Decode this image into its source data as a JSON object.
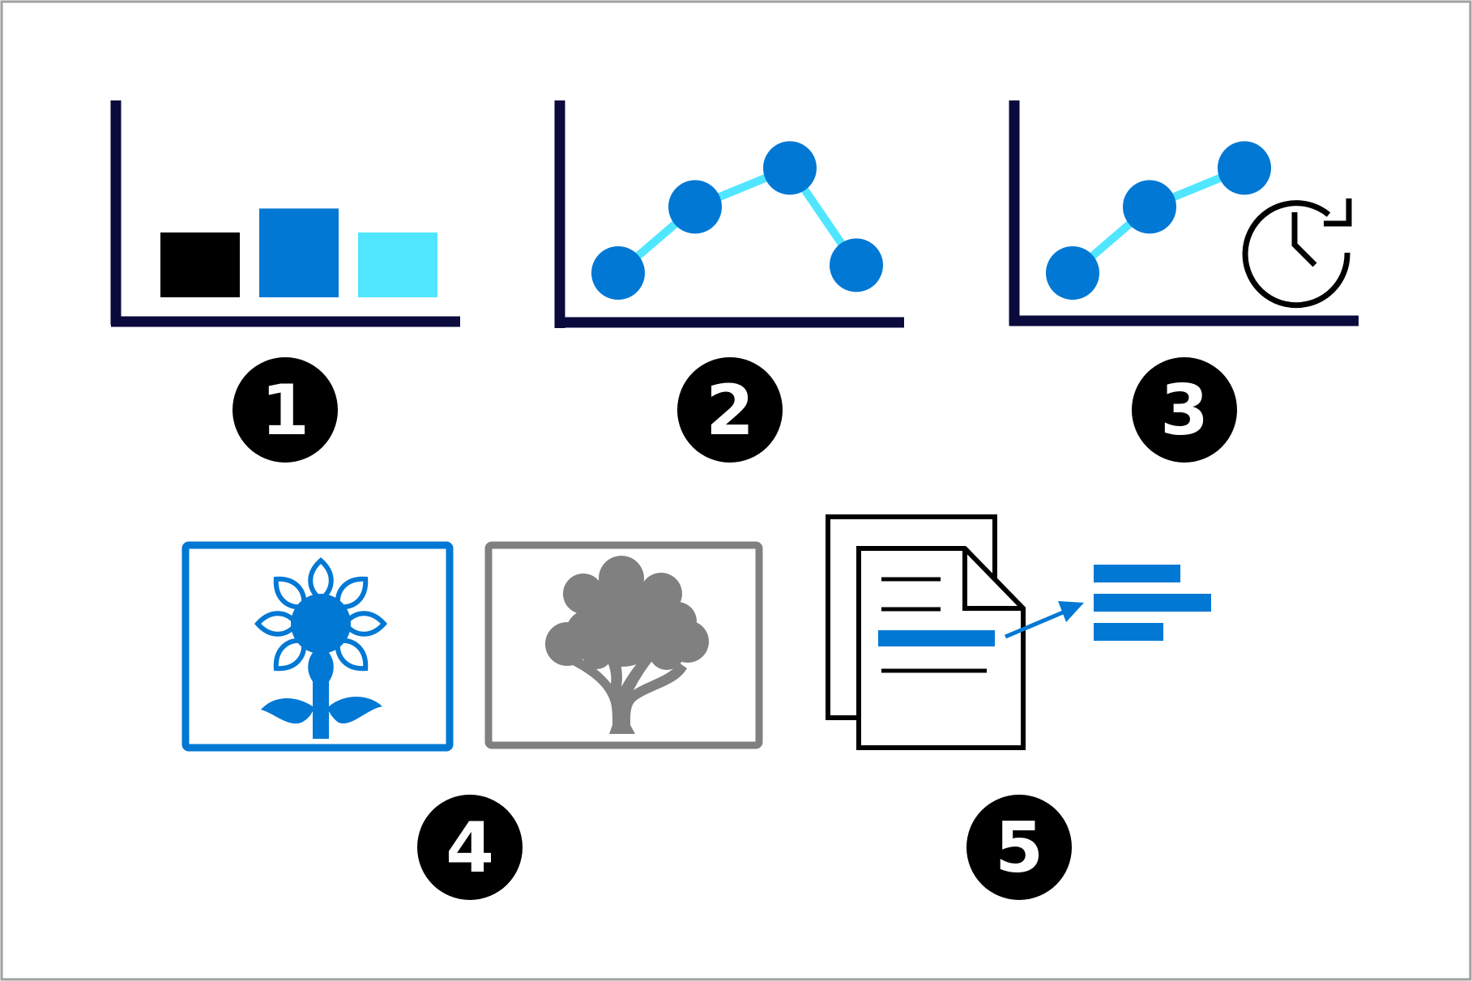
{
  "colors": {
    "axis": "#0a0a3c",
    "dark_blue": "#0078d4",
    "light_blue": "#50e6ff",
    "black": "#000000",
    "gray": "#808080",
    "frame": "#a0a0a0"
  },
  "panels": [
    {
      "id": "bar-chart",
      "badge": "1",
      "icon": "bar-chart-icon",
      "chart_data": {
        "type": "bar",
        "categories": [
          "",
          "",
          ""
        ],
        "values": [
          1.0,
          1.37,
          1.0
        ],
        "colors": [
          "#000000",
          "#0078d4",
          "#50e6ff"
        ]
      }
    },
    {
      "id": "line-chart",
      "badge": "2",
      "icon": "line-chart-icon",
      "chart_data": {
        "type": "line",
        "x": [
          1,
          2,
          3,
          4
        ],
        "y": [
          1.0,
          1.85,
          2.35,
          1.1
        ]
      }
    },
    {
      "id": "line-chart-with-clock",
      "badge": "3",
      "icon": "time-series-icon",
      "chart_data": {
        "type": "line",
        "x": [
          1,
          2,
          3
        ],
        "y": [
          1.0,
          1.85,
          2.35
        ]
      }
    },
    {
      "id": "image-classification",
      "badge": "4",
      "icons": [
        "flower-icon",
        "tree-icon"
      ]
    },
    {
      "id": "document-extraction",
      "badge": "5",
      "icons": [
        "documents-icon",
        "arrow-icon",
        "text-lines-icon"
      ]
    }
  ]
}
